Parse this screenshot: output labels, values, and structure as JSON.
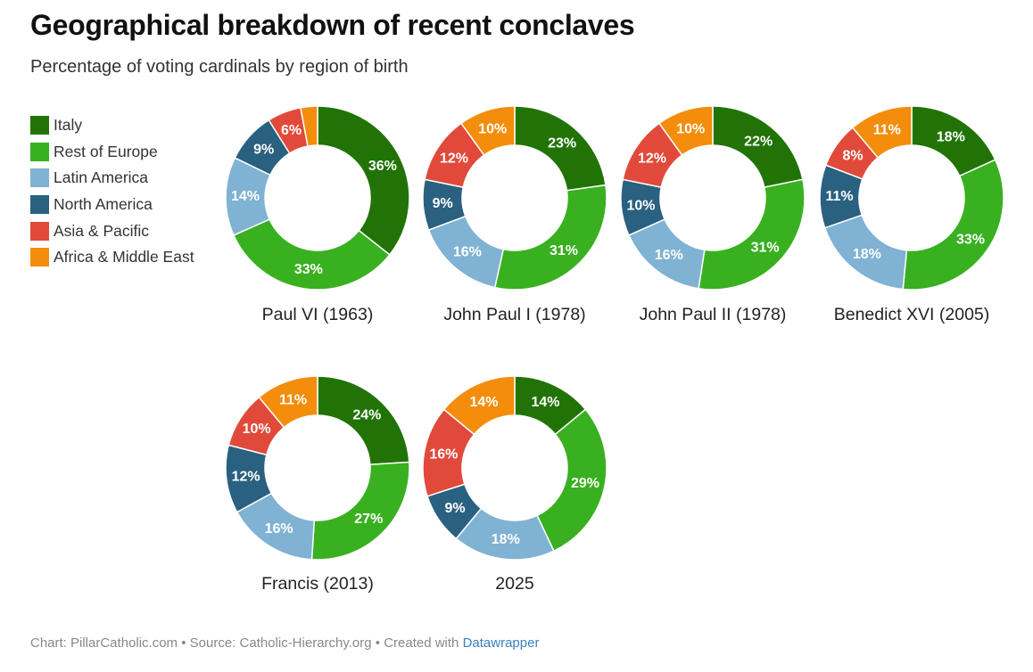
{
  "title": "Geographical breakdown of recent conclaves",
  "subtitle": "Percentage of voting cardinals by region of birth",
  "footer": {
    "text": "Chart: PillarCatholic.com • Source: Catholic-Hierarchy.org • Created with ",
    "link": "Datawrapper"
  },
  "chart_data": {
    "type": "pie",
    "subtype": "donut",
    "categories": [
      "Italy",
      "Rest of Europe",
      "Latin America",
      "North America",
      "Asia & Pacific",
      "Africa & Middle East"
    ],
    "colors": [
      "#217306",
      "#39b020",
      "#7fb2d3",
      "#2a6080",
      "#e14a3a",
      "#f48d0c"
    ],
    "legend_position": "left",
    "series": [
      {
        "name": "Paul VI (1963)",
        "values": [
          36,
          33,
          14,
          9,
          6,
          3
        ],
        "labels": [
          "36%",
          "33%",
          "14%",
          "9%",
          "6%",
          ""
        ]
      },
      {
        "name": "John Paul I (1978)",
        "values": [
          23,
          31,
          16,
          9,
          12,
          10
        ],
        "labels": [
          "23%",
          "31%",
          "16%",
          "9%",
          "12%",
          "10%"
        ]
      },
      {
        "name": "John Paul II (1978)",
        "values": [
          22,
          31,
          16,
          10,
          12,
          10
        ],
        "labels": [
          "22%",
          "31%",
          "16%",
          "10%",
          "12%",
          "10%"
        ]
      },
      {
        "name": "Benedict XVI (2005)",
        "values": [
          18,
          33,
          18,
          11,
          8,
          11
        ],
        "labels": [
          "18%",
          "33%",
          "18%",
          "11%",
          "8%",
          "11%"
        ]
      },
      {
        "name": "Francis (2013)",
        "values": [
          24,
          27,
          16,
          12,
          10,
          11
        ],
        "labels": [
          "24%",
          "27%",
          "16%",
          "12%",
          "10%",
          "11%"
        ]
      },
      {
        "name": "2025",
        "values": [
          14,
          29,
          18,
          9,
          16,
          14
        ],
        "labels": [
          "14%",
          "29%",
          "18%",
          "9%",
          "16%",
          "14%"
        ]
      }
    ]
  }
}
